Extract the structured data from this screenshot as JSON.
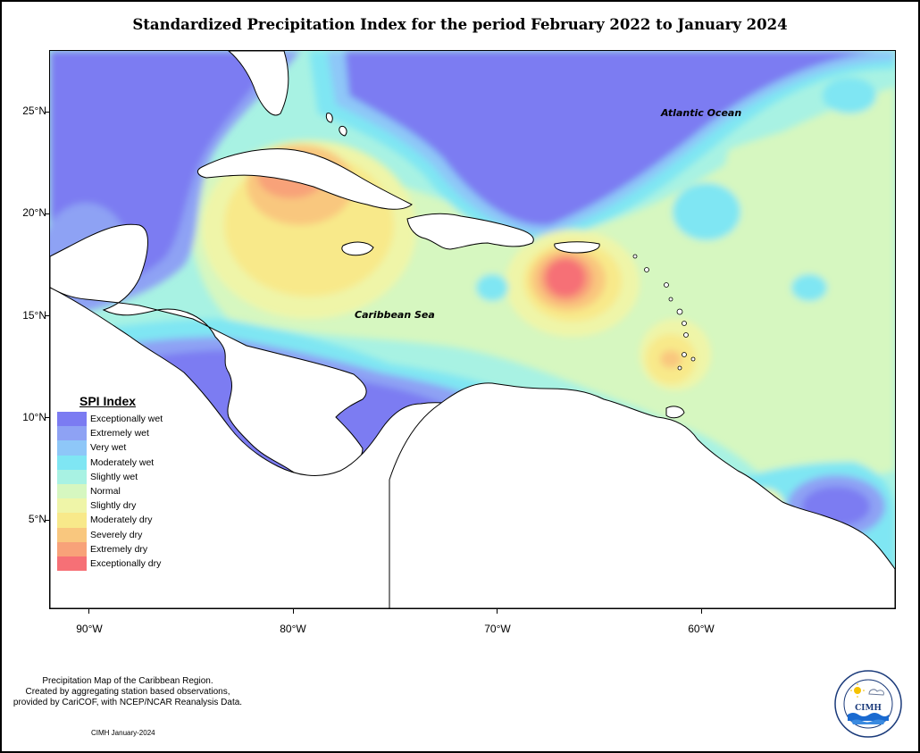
{
  "title": "Standardized Precipitation Index for the period February 2022 to January 2024",
  "map_labels": {
    "atlantic": "Atlantic Ocean",
    "caribbean": "Caribbean Sea"
  },
  "axes": {
    "lat_ticks": [
      "25°N",
      "20°N",
      "15°N",
      "10°N",
      "5°N"
    ],
    "lon_ticks": [
      "90°W",
      "80°W",
      "70°W",
      "60°W"
    ]
  },
  "legend": {
    "title": "SPI Index",
    "items": [
      {
        "label": "Exceptionally wet",
        "color": "#7b7bf2"
      },
      {
        "label": "Extremely wet",
        "color": "#8ea2f4"
      },
      {
        "label": "Very wet",
        "color": "#8ec7f8"
      },
      {
        "label": "Moderately wet",
        "color": "#7fe6f3"
      },
      {
        "label": "Slightly wet",
        "color": "#a8f2e3"
      },
      {
        "label": "Normal",
        "color": "#d6f7c0"
      },
      {
        "label": "Slightly dry",
        "color": "#eff5a8"
      },
      {
        "label": "Moderately dry",
        "color": "#f8e98a"
      },
      {
        "label": "Severely dry",
        "color": "#f9c77e"
      },
      {
        "label": "Extremely dry",
        "color": "#f8a279"
      },
      {
        "label": "Exceptionally dry",
        "color": "#f67076"
      }
    ]
  },
  "credits": {
    "line1": "Precipitation Map of the Caribbean Region.",
    "line2": "Created by aggregating station based observations,",
    "line3": "provided by CariCOF, with NCEP/NCAR Reanalysis Data.",
    "stamp": "CIMH January-2024"
  },
  "logo": {
    "text": "CIMH"
  }
}
